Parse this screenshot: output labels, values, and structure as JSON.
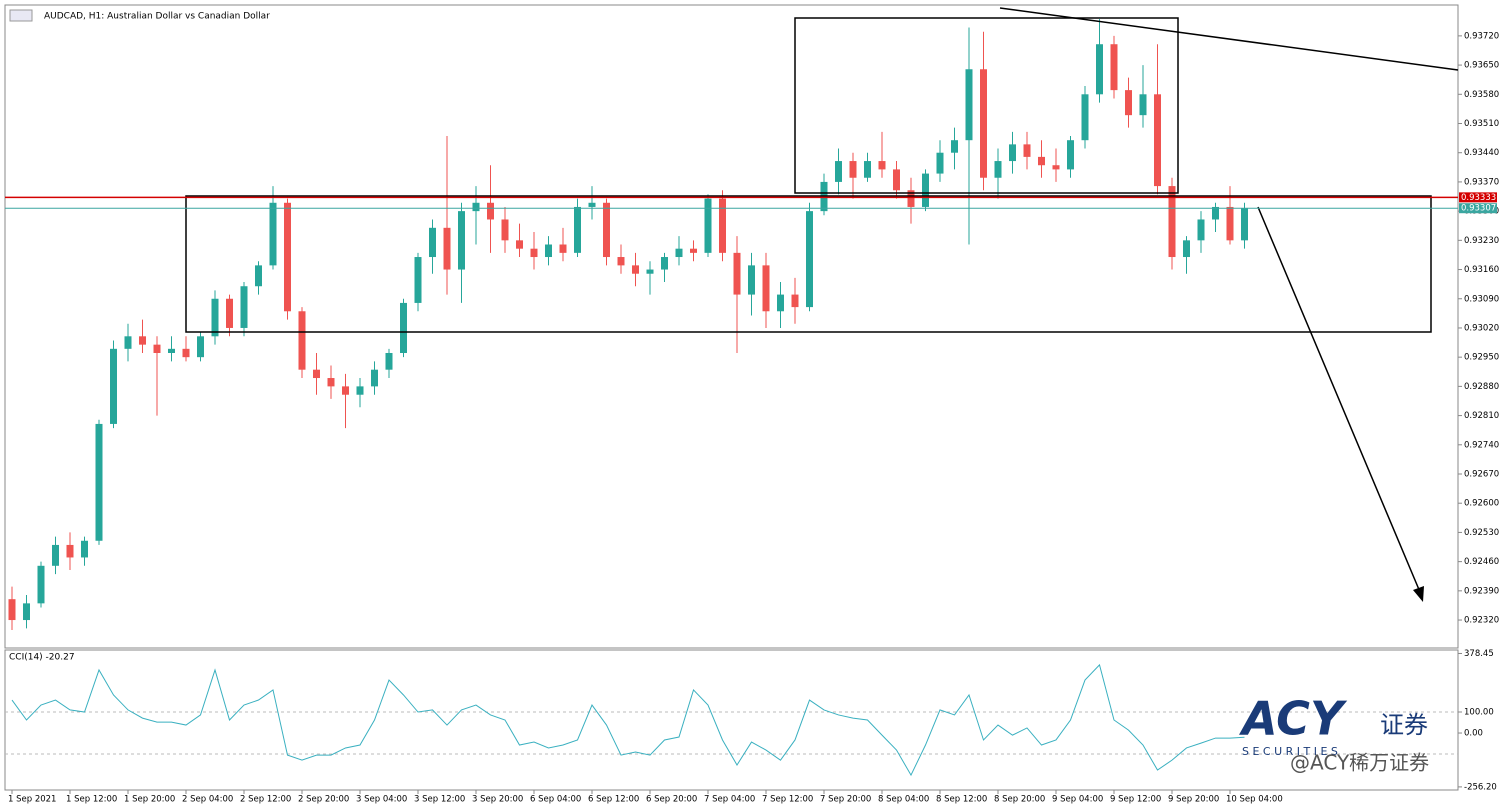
{
  "chart_data": [
    {
      "type": "candlestick",
      "title": "AUDCAD, H1:  Australian Dollar vs Canadian Dollar",
      "up_color": "#26a69a",
      "down_color": "#ef5350",
      "categories": [
        "1 Sep 2021",
        null,
        null,
        null,
        "1 Sep 12:00",
        null,
        null,
        null,
        "1 Sep 20:00",
        null,
        null,
        null,
        "2 Sep 04:00",
        null,
        null,
        null,
        "2 Sep 12:00",
        null,
        null,
        null,
        "2 Sep 20:00",
        null,
        null,
        null,
        "3 Sep 04:00",
        null,
        null,
        null,
        "3 Sep 12:00",
        null,
        null,
        null,
        "3 Sep 20:00",
        null,
        null,
        null,
        "6 Sep 04:00",
        null,
        null,
        null,
        "6 Sep 12:00",
        null,
        null,
        null,
        "6 Sep 20:00",
        null,
        null,
        null,
        "7 Sep 04:00",
        null,
        null,
        null,
        "7 Sep 12:00",
        null,
        null,
        null,
        "7 Sep 20:00",
        null,
        null,
        null,
        "8 Sep 04:00",
        null,
        null,
        null,
        "8 Sep 12:00",
        null,
        null,
        null,
        "8 Sep 20:00",
        null,
        null,
        null,
        "9 Sep 04:00",
        null,
        null,
        null,
        "9 Sep 12:00",
        null,
        null,
        null,
        "9 Sep 20:00",
        null,
        null,
        null,
        "10 Sep 04:00",
        null
      ],
      "open": [
        0.9237,
        0.9232,
        0.9236,
        0.9245,
        0.925,
        0.9247,
        0.9251,
        0.9279,
        0.9297,
        0.93,
        0.9298,
        0.9296,
        0.9297,
        0.9295,
        0.93,
        0.9309,
        0.9302,
        0.9312,
        0.9317,
        0.9332,
        0.9306,
        0.9292,
        0.929,
        0.9288,
        0.9286,
        0.9288,
        0.9292,
        0.9296,
        0.9308,
        0.9319,
        0.9326,
        0.9316,
        0.933,
        0.9332,
        0.9328,
        0.9323,
        0.9321,
        0.9319,
        0.9322,
        0.932,
        0.9331,
        0.9332,
        0.9319,
        0.9317,
        0.9315,
        0.9316,
        0.9319,
        0.9321,
        0.932,
        0.9333,
        0.932,
        0.931,
        0.9317,
        0.9306,
        0.931,
        0.9307,
        0.933,
        0.9337,
        0.9342,
        0.9338,
        0.9342,
        0.934,
        0.9335,
        0.9331,
        0.9339,
        0.9344,
        0.9347,
        0.9364,
        0.9338,
        0.9342,
        0.9346,
        0.9343,
        0.9341,
        0.934,
        0.9347,
        0.9358,
        0.937,
        0.9359,
        0.9353,
        0.9358,
        0.9336,
        0.9319,
        0.9323,
        0.9328,
        0.9331,
        0.9323
      ],
      "high": [
        0.924,
        0.9238,
        0.9246,
        0.9252,
        0.9253,
        0.9252,
        0.928,
        0.9299,
        0.9303,
        0.9304,
        0.93,
        0.93,
        0.93,
        0.9301,
        0.9311,
        0.931,
        0.9313,
        0.9318,
        0.9336,
        0.9333,
        0.9307,
        0.9296,
        0.9293,
        0.9291,
        0.929,
        0.9294,
        0.9297,
        0.9309,
        0.932,
        0.9328,
        0.9348,
        0.9332,
        0.9336,
        0.9341,
        0.9331,
        0.9327,
        0.9325,
        0.9324,
        0.9326,
        0.9333,
        0.9336,
        0.9333,
        0.9322,
        0.932,
        0.9318,
        0.932,
        0.9324,
        0.9323,
        0.9334,
        0.9335,
        0.9324,
        0.932,
        0.932,
        0.9313,
        0.9314,
        0.9332,
        0.9339,
        0.9345,
        0.9344,
        0.9344,
        0.9349,
        0.9342,
        0.9338,
        0.934,
        0.9347,
        0.935,
        0.9374,
        0.9373,
        0.9345,
        0.9349,
        0.9349,
        0.9347,
        0.9345,
        0.9348,
        0.936,
        0.9376,
        0.9372,
        0.9362,
        0.9365,
        0.937,
        0.9338,
        0.9324,
        0.933,
        0.9332,
        0.9336,
        0.9332
      ],
      "low": [
        0.92296,
        0.923,
        0.9235,
        0.9243,
        0.9244,
        0.9245,
        0.925,
        0.9278,
        0.9294,
        0.9296,
        0.9281,
        0.9294,
        0.9294,
        0.9294,
        0.9298,
        0.93,
        0.93,
        0.931,
        0.9316,
        0.9304,
        0.929,
        0.9286,
        0.9285,
        0.9278,
        0.9283,
        0.9286,
        0.929,
        0.9295,
        0.9306,
        0.9315,
        0.931,
        0.9308,
        0.9322,
        0.932,
        0.932,
        0.9319,
        0.9316,
        0.9317,
        0.9318,
        0.9319,
        0.9328,
        0.9317,
        0.9315,
        0.9312,
        0.931,
        0.9313,
        0.9317,
        0.9318,
        0.9319,
        0.9318,
        0.9296,
        0.9305,
        0.9302,
        0.9302,
        0.9303,
        0.9306,
        0.9329,
        0.9334,
        0.9333,
        0.9337,
        0.9338,
        0.9333,
        0.9327,
        0.933,
        0.9337,
        0.934,
        0.9322,
        0.9335,
        0.9333,
        0.9339,
        0.934,
        0.9338,
        0.9337,
        0.9338,
        0.9345,
        0.9356,
        0.9357,
        0.935,
        0.935,
        0.9334,
        0.9316,
        0.9315,
        0.932,
        0.9325,
        0.9322,
        0.9321
      ],
      "close": [
        0.9232,
        0.9236,
        0.9245,
        0.925,
        0.9247,
        0.9251,
        0.9279,
        0.9297,
        0.93,
        0.9298,
        0.9296,
        0.9297,
        0.9295,
        0.93,
        0.9309,
        0.9302,
        0.9312,
        0.9317,
        0.9332,
        0.9306,
        0.9292,
        0.929,
        0.9288,
        0.9286,
        0.9288,
        0.9292,
        0.9296,
        0.9308,
        0.9319,
        0.9326,
        0.9316,
        0.933,
        0.9332,
        0.9328,
        0.9323,
        0.9321,
        0.9319,
        0.9322,
        0.932,
        0.9331,
        0.9332,
        0.9319,
        0.9317,
        0.9315,
        0.9316,
        0.9319,
        0.9321,
        0.932,
        0.9333,
        0.932,
        0.931,
        0.9317,
        0.9306,
        0.931,
        0.9307,
        0.933,
        0.9337,
        0.9342,
        0.9338,
        0.9342,
        0.934,
        0.9335,
        0.9331,
        0.9339,
        0.9344,
        0.9347,
        0.9364,
        0.9338,
        0.9342,
        0.9346,
        0.9343,
        0.9341,
        0.934,
        0.9347,
        0.9358,
        0.937,
        0.9359,
        0.9353,
        0.9358,
        0.9336,
        0.9319,
        0.9323,
        0.9328,
        0.9331,
        0.9323,
        0.93307
      ],
      "ylim": [
        0.92253,
        0.93794
      ],
      "yticks": [
        {
          "value": 0.9232,
          "label": "0.92320"
        },
        {
          "value": 0.9239,
          "label": "0.92390"
        },
        {
          "value": 0.9246,
          "label": "0.92460"
        },
        {
          "value": 0.9253,
          "label": "0.92530"
        },
        {
          "value": 0.926,
          "label": "0.92600"
        },
        {
          "value": 0.9267,
          "label": "0.92670"
        },
        {
          "value": 0.9274,
          "label": "0.92740"
        },
        {
          "value": 0.9281,
          "label": "0.92810"
        },
        {
          "value": 0.9288,
          "label": "0.92880"
        },
        {
          "value": 0.9295,
          "label": "0.92950"
        },
        {
          "value": 0.9302,
          "label": "0.93020"
        },
        {
          "value": 0.9309,
          "label": "0.93090"
        },
        {
          "value": 0.9316,
          "label": "0.93160"
        },
        {
          "value": 0.9323,
          "label": "0.93230"
        },
        {
          "value": 0.933,
          "label": "0.93300"
        },
        {
          "value": 0.9337,
          "label": "0.93370"
        },
        {
          "value": 0.9344,
          "label": "0.93440"
        },
        {
          "value": 0.9351,
          "label": "0.93510"
        },
        {
          "value": 0.9358,
          "label": "0.93580"
        },
        {
          "value": 0.9365,
          "label": "0.93650"
        },
        {
          "value": 0.9372,
          "label": "0.93720"
        }
      ],
      "price_lines": [
        {
          "value": 0.93333,
          "color": "#d40000"
        },
        {
          "value": 0.93307,
          "color": "#3aa6a0"
        }
      ]
    },
    {
      "type": "line",
      "title": "CCI(14) -20.27",
      "color": "#3ab0c0",
      "values": [
        157,
        62,
        133,
        157,
        110,
        100,
        300,
        181,
        110,
        71,
        52,
        52,
        38,
        86,
        300,
        62,
        133,
        157,
        205,
        -105,
        -129,
        -105,
        -105,
        -71,
        -57,
        62,
        252,
        181,
        100,
        110,
        38,
        110,
        133,
        86,
        62,
        -57,
        -43,
        -71,
        -57,
        -33,
        133,
        38,
        -105,
        -90,
        -105,
        -33,
        -19,
        205,
        133,
        -33,
        -152,
        -43,
        -81,
        -129,
        -33,
        157,
        110,
        86,
        71,
        62,
        -10,
        -81,
        -200,
        -57,
        110,
        86,
        181,
        -33,
        38,
        -10,
        24,
        -57,
        -33,
        62,
        252,
        324,
        62,
        14,
        -57,
        -176,
        -129,
        -71,
        -48,
        -24,
        -24,
        -20.27
      ],
      "ylim": [
        -271,
        395
      ],
      "yticks": [
        378.45,
        {
          "value": 100,
          "label": "100.00"
        },
        {
          "value": 0,
          "label": "0.00"
        },
        {
          "value": -256.2,
          "label": "-256.20"
        }
      ],
      "levels": [
        100,
        -100
      ]
    }
  ],
  "watermark": {
    "brand": "ACY",
    "chinese": "证券",
    "securities": "S E C U R I T I E S",
    "handle": "@ACY稀万证券"
  }
}
